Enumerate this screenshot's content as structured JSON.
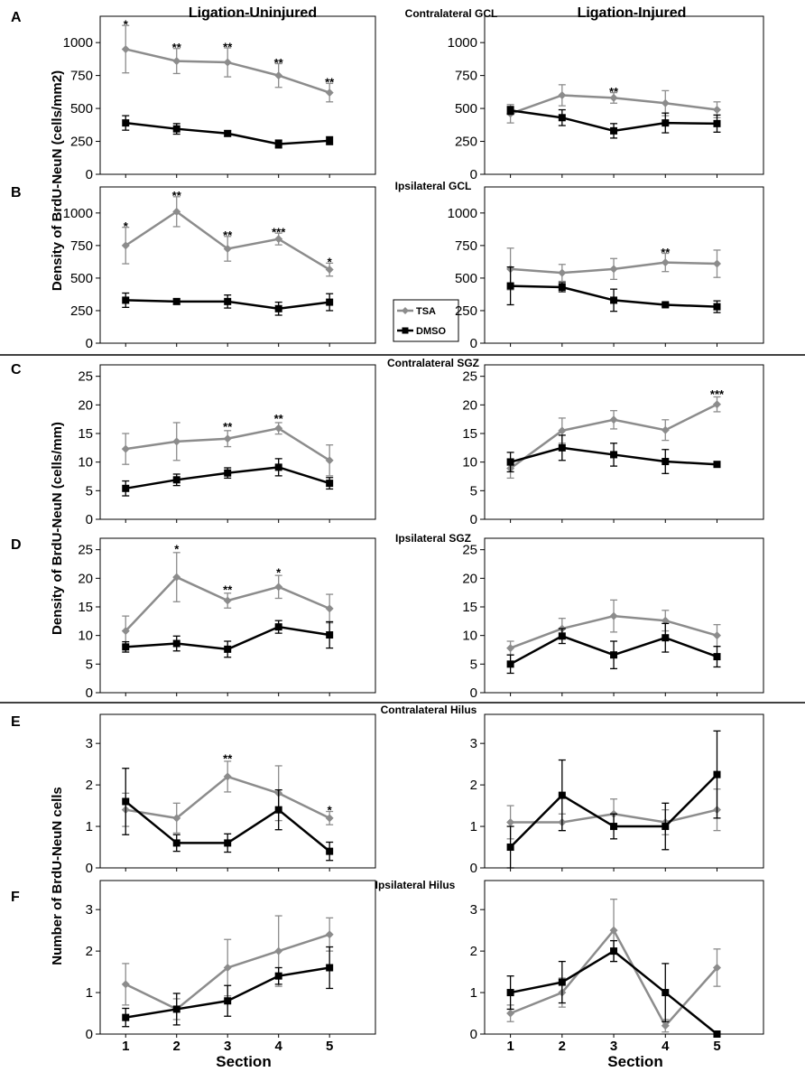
{
  "figure": {
    "column_titles": [
      "Ligation-Uninjured",
      "Ligation-Injured"
    ],
    "x_axis_label": "Section",
    "y_axis_labels": [
      "Density of BrdU-NeuN (cells/mm2)",
      "Density of BrdU-NeuN (cells/mm)",
      "Number of BrdU-NeuN cells"
    ],
    "legend": {
      "entries": [
        "TSA",
        "DMSO"
      ],
      "colors": {
        "TSA": "#8c8c8c",
        "DMSO": "#000000"
      }
    }
  },
  "chart_data": [
    {
      "type": "line",
      "panel": "A",
      "row_title": "Contralateral GCL",
      "column": "Ligation-Uninjured",
      "x": [
        1,
        2,
        3,
        4,
        5
      ],
      "ylim": [
        0,
        1200
      ],
      "yticks": [
        0,
        250,
        500,
        750,
        1000
      ],
      "xticks": [],
      "series": [
        {
          "name": "TSA",
          "values": [
            950,
            860,
            850,
            750,
            620
          ],
          "errors": [
            180,
            95,
            110,
            90,
            70
          ]
        },
        {
          "name": "DMSO",
          "values": [
            390,
            345,
            310,
            230,
            255
          ],
          "errors": [
            55,
            40,
            20,
            30,
            30
          ]
        }
      ],
      "annotations": [
        {
          "x": 1,
          "y": 1135,
          "text": "*"
        },
        {
          "x": 2,
          "y": 960,
          "text": "**"
        },
        {
          "x": 3,
          "y": 965,
          "text": "**"
        },
        {
          "x": 4,
          "y": 845,
          "text": "**"
        },
        {
          "x": 5,
          "y": 695,
          "text": "**"
        }
      ]
    },
    {
      "type": "line",
      "panel": "",
      "row_title": "",
      "column": "Ligation-Injured",
      "x": [
        1,
        2,
        3,
        4,
        5
      ],
      "ylim": [
        0,
        1200
      ],
      "yticks": [
        0,
        250,
        500,
        750,
        1000
      ],
      "xticks": [],
      "series": [
        {
          "name": "TSA",
          "values": [
            460,
            600,
            580,
            540,
            490
          ],
          "errors": [
            70,
            80,
            40,
            95,
            60
          ]
        },
        {
          "name": "DMSO",
          "values": [
            485,
            430,
            330,
            390,
            385
          ],
          "errors": [
            30,
            60,
            55,
            75,
            65
          ]
        }
      ],
      "annotations": [
        {
          "x": 3,
          "y": 625,
          "text": "**"
        }
      ]
    },
    {
      "type": "line",
      "panel": "B",
      "row_title": "Ipsilateral GCL",
      "column": "Ligation-Uninjured",
      "x": [
        1,
        2,
        3,
        4,
        5
      ],
      "ylim": [
        0,
        1200
      ],
      "yticks": [
        0,
        250,
        500,
        750,
        1000
      ],
      "xticks": [],
      "series": [
        {
          "name": "TSA",
          "values": [
            750,
            1010,
            725,
            800,
            565
          ],
          "errors": [
            140,
            115,
            95,
            45,
            50
          ]
        },
        {
          "name": "DMSO",
          "values": [
            330,
            320,
            320,
            265,
            315
          ],
          "errors": [
            55,
            20,
            50,
            50,
            65
          ]
        }
      ],
      "annotations": [
        {
          "x": 1,
          "y": 895,
          "text": "*"
        },
        {
          "x": 2,
          "y": 1130,
          "text": "**"
        },
        {
          "x": 3,
          "y": 825,
          "text": "**"
        },
        {
          "x": 4,
          "y": 850,
          "text": "***"
        },
        {
          "x": 5,
          "y": 620,
          "text": "*"
        }
      ]
    },
    {
      "type": "line",
      "panel": "",
      "row_title": "",
      "column": "Ligation-Injured",
      "x": [
        1,
        2,
        3,
        4,
        5
      ],
      "ylim": [
        0,
        1200
      ],
      "yticks": [
        0,
        250,
        500,
        750,
        1000
      ],
      "xticks": [],
      "series": [
        {
          "name": "TSA",
          "values": [
            570,
            540,
            570,
            620,
            610
          ],
          "errors": [
            160,
            65,
            80,
            70,
            105
          ]
        },
        {
          "name": "DMSO",
          "values": [
            440,
            430,
            330,
            295,
            280
          ],
          "errors": [
            145,
            35,
            85,
            15,
            45
          ]
        }
      ],
      "annotations": [
        {
          "x": 4,
          "y": 695,
          "text": "**"
        }
      ]
    },
    {
      "type": "line",
      "panel": "C",
      "row_title": "Contralateral SGZ",
      "column": "Ligation-Uninjured",
      "x": [
        1,
        2,
        3,
        4,
        5
      ],
      "ylim": [
        0,
        27
      ],
      "yticks": [
        0,
        5,
        10,
        15,
        20,
        25
      ],
      "xticks": [],
      "series": [
        {
          "name": "TSA",
          "values": [
            12.3,
            13.6,
            14.1,
            15.9,
            10.3
          ],
          "errors": [
            2.7,
            3.3,
            1.4,
            1.0,
            2.7
          ]
        },
        {
          "name": "DMSO",
          "values": [
            5.4,
            6.9,
            8.1,
            9.1,
            6.3
          ],
          "errors": [
            1.3,
            1.0,
            0.9,
            1.5,
            1.0
          ]
        }
      ],
      "annotations": [
        {
          "x": 3,
          "y": 16.1,
          "text": "**"
        },
        {
          "x": 4,
          "y": 17.5,
          "text": "**"
        }
      ]
    },
    {
      "type": "line",
      "panel": "",
      "row_title": "",
      "column": "Ligation-Injured",
      "x": [
        1,
        2,
        3,
        4,
        5
      ],
      "ylim": [
        0,
        27
      ],
      "yticks": [
        0,
        5,
        10,
        15,
        20,
        25
      ],
      "xticks": [],
      "series": [
        {
          "name": "TSA",
          "values": [
            8.9,
            15.5,
            17.4,
            15.6,
            20.1
          ],
          "errors": [
            1.7,
            2.2,
            1.6,
            1.8,
            1.3
          ]
        },
        {
          "name": "DMSO",
          "values": [
            10.0,
            12.5,
            11.3,
            10.1,
            9.6
          ],
          "errors": [
            1.7,
            2.2,
            2.0,
            2.1,
            0.3
          ]
        }
      ],
      "annotations": [
        {
          "x": 5,
          "y": 21.8,
          "text": "***"
        }
      ]
    },
    {
      "type": "line",
      "panel": "D",
      "row_title": "Ipsilateral SGZ",
      "column": "Ligation-Uninjured",
      "x": [
        1,
        2,
        3,
        4,
        5
      ],
      "ylim": [
        0,
        27
      ],
      "yticks": [
        0,
        5,
        10,
        15,
        20,
        25
      ],
      "xticks": [],
      "series": [
        {
          "name": "TSA",
          "values": [
            10.8,
            20.2,
            16.1,
            18.5,
            14.7
          ],
          "errors": [
            2.6,
            4.3,
            1.3,
            2.0,
            2.5
          ]
        },
        {
          "name": "DMSO",
          "values": [
            8.0,
            8.6,
            7.6,
            11.5,
            10.1
          ],
          "errors": [
            0.9,
            1.3,
            1.4,
            1.1,
            2.3
          ]
        }
      ],
      "annotations": [
        {
          "x": 2,
          "y": 25.0,
          "text": "*"
        },
        {
          "x": 3,
          "y": 17.9,
          "text": "**"
        },
        {
          "x": 4,
          "y": 20.9,
          "text": "*"
        }
      ]
    },
    {
      "type": "line",
      "panel": "",
      "row_title": "",
      "column": "Ligation-Injured",
      "x": [
        1,
        2,
        3,
        4,
        5
      ],
      "ylim": [
        0,
        27
      ],
      "yticks": [
        0,
        5,
        10,
        15,
        20,
        25
      ],
      "xticks": [],
      "series": [
        {
          "name": "TSA",
          "values": [
            7.8,
            11.2,
            13.4,
            12.6,
            10.0
          ],
          "errors": [
            1.2,
            1.8,
            2.8,
            1.8,
            1.9
          ]
        },
        {
          "name": "DMSO",
          "values": [
            5.0,
            9.9,
            6.6,
            9.6,
            6.3
          ],
          "errors": [
            1.6,
            1.3,
            2.4,
            2.5,
            1.8
          ]
        }
      ],
      "annotations": []
    },
    {
      "type": "line",
      "panel": "E",
      "row_title": "Contralateral Hilus",
      "column": "Ligation-Uninjured",
      "x": [
        1,
        2,
        3,
        4,
        5
      ],
      "ylim": [
        0,
        3.7
      ],
      "yticks": [
        0,
        1,
        2,
        3
      ],
      "xticks": [],
      "series": [
        {
          "name": "TSA",
          "values": [
            1.4,
            1.2,
            2.2,
            1.8,
            1.2
          ],
          "errors": [
            0.4,
            0.36,
            0.37,
            0.66,
            0.16
          ]
        },
        {
          "name": "DMSO",
          "values": [
            1.6,
            0.6,
            0.6,
            1.4,
            0.4
          ],
          "errors": [
            0.8,
            0.2,
            0.22,
            0.48,
            0.22
          ]
        }
      ],
      "annotations": [
        {
          "x": 3,
          "y": 2.62,
          "text": "**"
        },
        {
          "x": 5,
          "y": 1.38,
          "text": "*"
        }
      ]
    },
    {
      "type": "line",
      "panel": "",
      "row_title": "",
      "column": "Ligation-Injured",
      "x": [
        1,
        2,
        3,
        4,
        5
      ],
      "ylim": [
        0,
        3.7
      ],
      "yticks": [
        0,
        1,
        2,
        3
      ],
      "xticks": [],
      "series": [
        {
          "name": "TSA",
          "values": [
            1.1,
            1.1,
            1.3,
            1.1,
            1.4
          ],
          "errors": [
            0.4,
            0.2,
            0.36,
            0.3,
            0.5
          ]
        },
        {
          "name": "DMSO",
          "values": [
            0.5,
            1.75,
            1.0,
            1.0,
            2.25
          ],
          "errors": [
            0.5,
            0.85,
            0.3,
            0.56,
            1.05
          ]
        }
      ],
      "annotations": []
    },
    {
      "type": "line",
      "panel": "F",
      "row_title": "Ipsilateral Hilus",
      "column": "Ligation-Uninjured",
      "x": [
        1,
        2,
        3,
        4,
        5
      ],
      "ylim": [
        0,
        3.7
      ],
      "yticks": [
        0,
        1,
        2,
        3
      ],
      "xticks": [
        1,
        2,
        3,
        4,
        5
      ],
      "series": [
        {
          "name": "TSA",
          "values": [
            1.2,
            0.6,
            1.6,
            2.0,
            2.4
          ],
          "errors": [
            0.5,
            0.25,
            0.68,
            0.85,
            0.4
          ]
        },
        {
          "name": "DMSO",
          "values": [
            0.4,
            0.6,
            0.8,
            1.4,
            1.6
          ],
          "errors": [
            0.22,
            0.38,
            0.37,
            0.2,
            0.5
          ]
        }
      ],
      "annotations": []
    },
    {
      "type": "line",
      "panel": "",
      "row_title": "",
      "column": "Ligation-Injured",
      "x": [
        1,
        2,
        3,
        4,
        5
      ],
      "ylim": [
        0,
        3.7
      ],
      "yticks": [
        0,
        1,
        2,
        3
      ],
      "xticks": [
        1,
        2,
        3,
        4,
        5
      ],
      "series": [
        {
          "name": "TSA",
          "values": [
            0.5,
            1.0,
            2.5,
            0.2,
            1.6
          ],
          "errors": [
            0.2,
            0.35,
            0.75,
            0.15,
            0.45
          ]
        },
        {
          "name": "DMSO",
          "values": [
            1.0,
            1.25,
            2.0,
            1.0,
            0.0
          ],
          "errors": [
            0.4,
            0.5,
            0.25,
            0.7,
            0.05
          ]
        }
      ],
      "annotations": []
    }
  ]
}
